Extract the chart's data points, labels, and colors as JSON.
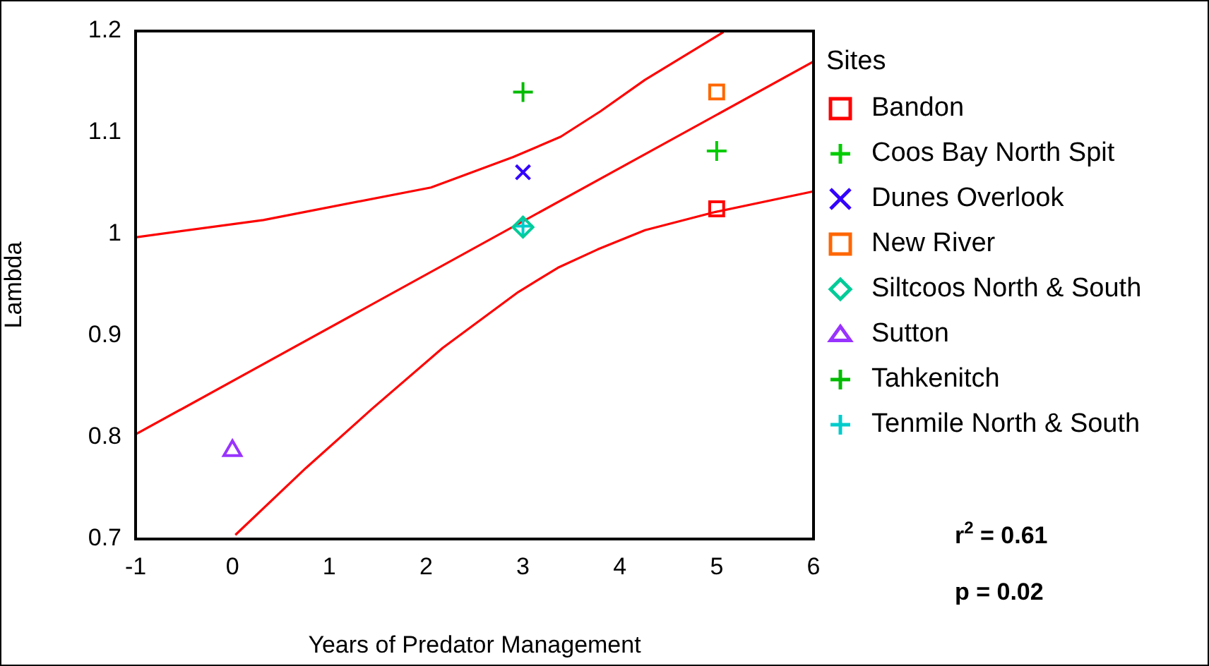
{
  "chart_data": {
    "type": "scatter",
    "xlabel": "Years of Predator Management",
    "ylabel": "Lambda",
    "legend_title": "Sites",
    "legend": "right",
    "xlim": [
      -1,
      6
    ],
    "xticks": [
      -1,
      0,
      1,
      2,
      3,
      4,
      5,
      6
    ],
    "ylim": [
      0.7,
      1.2
    ],
    "yticks": [
      0.7,
      0.8,
      0.9,
      1,
      1.1,
      1.2
    ],
    "grid": false,
    "annotations": [
      "r$^{2}$ = 0.61",
      "p = 0.02"
    ],
    "series": [
      {
        "name": "Bandon",
        "color": "#ff0000",
        "marker": "square",
        "x": [
          5
        ],
        "values": [
          1.025
        ]
      },
      {
        "name": "Coos Bay North Spit",
        "color": "#00cc00",
        "marker": "cross",
        "x": [
          5
        ],
        "values": [
          1.082
        ]
      },
      {
        "name": "Dunes Overlook",
        "color": "#3300ff",
        "marker": "x",
        "x": [
          3
        ],
        "values": [
          1.061
        ]
      },
      {
        "name": "New River",
        "color": "#ff6600",
        "marker": "square",
        "x": [
          5
        ],
        "values": [
          1.14
        ]
      },
      {
        "name": "Siltcoos North & South",
        "color": "#00cc99",
        "marker": "diamond",
        "x": [
          3
        ],
        "values": [
          1.007
        ]
      },
      {
        "name": "Sutton",
        "color": "#9933ff",
        "marker": "triangle",
        "x": [
          0
        ],
        "values": [
          0.787
        ]
      },
      {
        "name": "Tahkenitch",
        "color": "#00bb00",
        "marker": "cross",
        "x": [
          3
        ],
        "values": [
          1.14
        ]
      },
      {
        "name": "Tenmile North & South",
        "color": "#00cccc",
        "marker": "cross",
        "x": [
          3
        ],
        "values": [
          1.008
        ]
      },
      {
        "type": "line",
        "color": "#ff0000",
        "marker": "none",
        "x": [
          -1,
          6
        ],
        "values": [
          0.803,
          1.17
        ]
      },
      {
        "type": "line",
        "color": "#ff0000",
        "marker": "none",
        "x": [
          -1,
          0.32,
          2.05,
          2.9,
          3.39,
          3.8,
          4.26,
          5.07
        ],
        "values": [
          0.997,
          1.014,
          1.046,
          1.076,
          1.096,
          1.121,
          1.152,
          1.199
        ]
      },
      {
        "type": "line",
        "color": "#ff0000",
        "marker": "none",
        "x": [
          0.03,
          0.76,
          1.44,
          2.17,
          2.95,
          3.36,
          3.77,
          4.26,
          4.99,
          5.99
        ],
        "values": [
          0.704,
          0.77,
          0.828,
          0.888,
          0.943,
          0.967,
          0.985,
          1.004,
          1.022,
          1.042
        ]
      }
    ]
  }
}
